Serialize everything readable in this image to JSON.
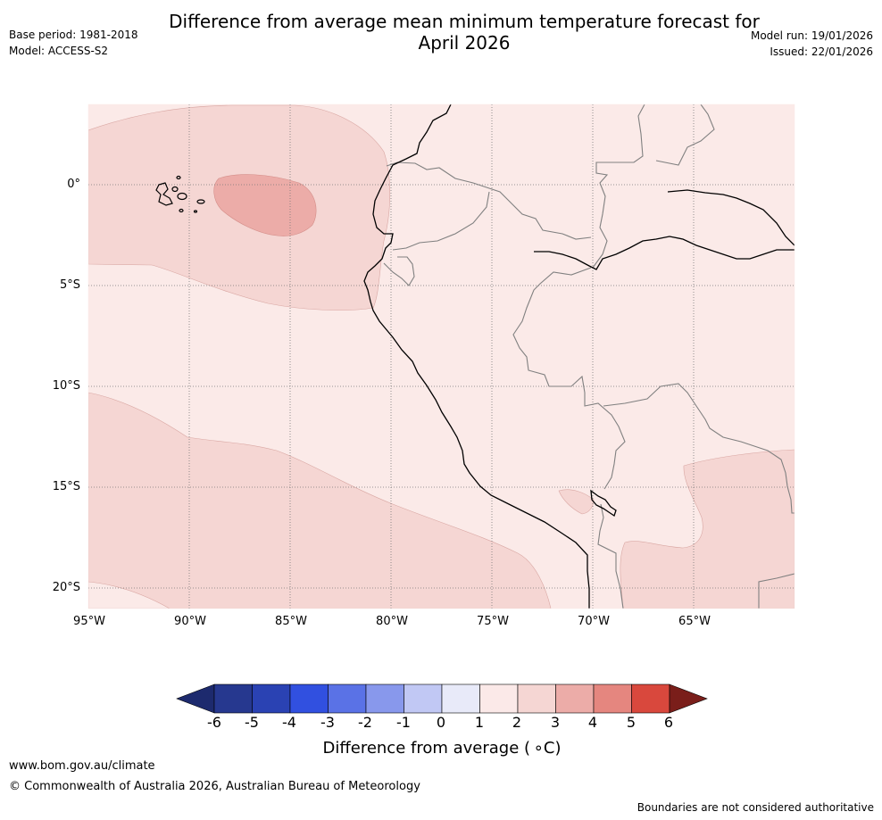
{
  "header": {
    "title_line1": "Difference from average mean minimum temperature forecast for",
    "title_line2": "April 2026",
    "base_period": "Base period: 1981-2018",
    "model": "Model: ACCESS-S2",
    "model_run": "Model run: 19/01/2026",
    "issued": "Issued: 22/01/2026"
  },
  "map": {
    "lat_labels": [
      "0°",
      "5°S",
      "10°S",
      "15°S",
      "20°S"
    ],
    "lon_labels": [
      "95°W",
      "90°W",
      "85°W",
      "80°W",
      "75°W",
      "70°W",
      "65°W"
    ],
    "anomaly_fills": {
      "0_to_1": "#fbeae8",
      "1_to_2": "#f5d6d3",
      "2_to_3": "#ecaca8"
    }
  },
  "colorbar": {
    "ticks": [
      "-6",
      "-5",
      "-4",
      "-3",
      "-2",
      "-1",
      "0",
      "1",
      "2",
      "3",
      "4",
      "5",
      "6"
    ],
    "colors": [
      "#26388f",
      "#2a42b3",
      "#3150e0",
      "#5a72e6",
      "#8898ec",
      "#c1c8f4",
      "#e8eaf9",
      "#fbe9e8",
      "#f5d6d3",
      "#ecaca8",
      "#e5867f",
      "#d9483d",
      "#ac2b24"
    ],
    "min_extend_color": "#1d2a6e",
    "max_extend_color": "#7a1e1a",
    "label": "Difference from average ( ∘C)"
  },
  "footer": {
    "url": "www.bom.gov.au/climate",
    "copyright": "© Commonwealth of Australia 2026, Australian Bureau of Meteorology",
    "disclaimer": "Boundaries are not considered authoritative"
  }
}
